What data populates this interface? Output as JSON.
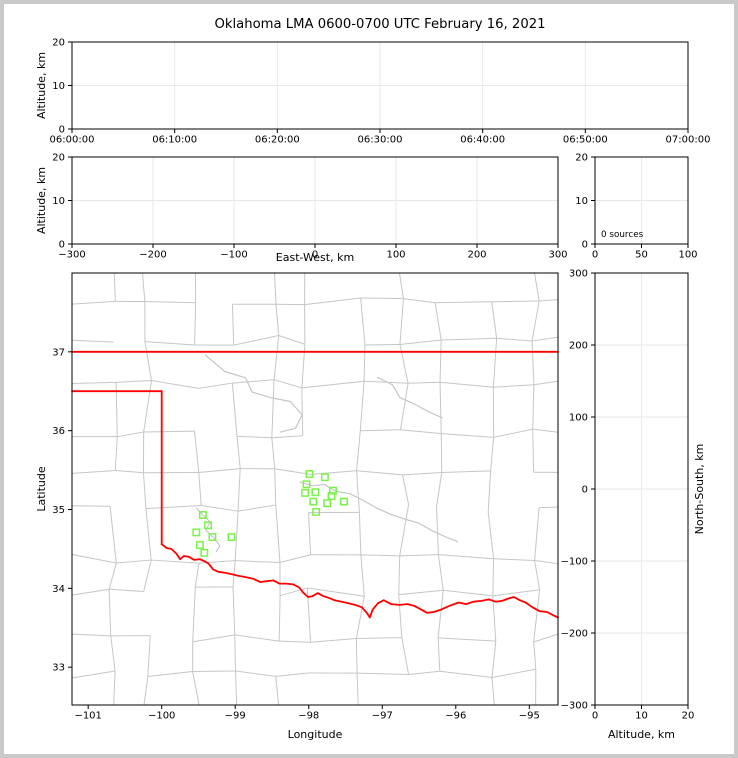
{
  "figure": {
    "title": "Oklahoma LMA 0600-0700 UTC February 16, 2021",
    "background_color": "#ffffff",
    "border_color": "#c9c9c9"
  },
  "colors": {
    "axis": "#000000",
    "grid": "#e7e7e7",
    "county_border": "#c6c6c6",
    "state_border": "#ff0000",
    "station_marker": "#7bf24a"
  },
  "chart_data": [
    {
      "id": "time-height",
      "type": "scatter",
      "xlabel": "",
      "ylabel": "Altitude, km",
      "xlim": [
        0,
        6
      ],
      "xticks": [
        0,
        1,
        2,
        3,
        4,
        5,
        6
      ],
      "xtick_labels": [
        "06:00:00",
        "06:10:00",
        "06:20:00",
        "06:30:00",
        "06:40:00",
        "06:50:00",
        "07:00:00"
      ],
      "ylim": [
        0,
        20
      ],
      "yticks": [
        0,
        10,
        20
      ],
      "ytick_labels": [
        "0",
        "10",
        "20"
      ],
      "grid": true,
      "points": []
    },
    {
      "id": "ew-height",
      "type": "scatter",
      "xlabel": "East-West, km",
      "ylabel": "Altitude, km",
      "xlim": [
        -300,
        300
      ],
      "xticks": [
        -300,
        -200,
        -100,
        0,
        100,
        200,
        300
      ],
      "xtick_labels": [
        "−300",
        "−200",
        "−100",
        "0",
        "100",
        "200",
        "300"
      ],
      "ylim": [
        0,
        20
      ],
      "yticks": [
        0,
        10,
        20
      ],
      "ytick_labels": [
        "0",
        "10",
        "20"
      ],
      "grid": true,
      "points": []
    },
    {
      "id": "alt-histogram",
      "type": "histogram",
      "annotation": "0 sources",
      "xlabel": "",
      "ylabel": "",
      "xlim": [
        0,
        100
      ],
      "xticks": [
        0,
        50,
        100
      ],
      "xtick_labels": [
        "0",
        "50",
        "100"
      ],
      "ylim": [
        0,
        20
      ],
      "yticks": [
        0,
        10,
        20
      ],
      "ytick_labels": [
        "0",
        "10",
        "20"
      ],
      "grid": true,
      "points": []
    },
    {
      "id": "plan-view",
      "type": "map-scatter",
      "xlabel": "Longitude",
      "ylabel": "Latitude",
      "xlim": [
        -101.22,
        -94.61
      ],
      "xticks": [
        -101,
        -100,
        -99,
        -98,
        -97,
        -96,
        -95
      ],
      "xtick_labels": [
        "−101",
        "−100",
        "−99",
        "−98",
        "−97",
        "−96",
        "−95"
      ],
      "ylim": [
        32.52,
        38.0
      ],
      "yticks": [
        33,
        34,
        35,
        36,
        37
      ],
      "ytick_labels": [
        "33",
        "34",
        "35",
        "36",
        "37"
      ],
      "grid": false,
      "stations": [
        [
          -97.99,
          35.45
        ],
        [
          -97.78,
          35.41
        ],
        [
          -98.03,
          35.32
        ],
        [
          -97.67,
          35.24
        ],
        [
          -97.91,
          35.22
        ],
        [
          -98.05,
          35.21
        ],
        [
          -97.69,
          35.17
        ],
        [
          -97.94,
          35.1
        ],
        [
          -97.75,
          35.08
        ],
        [
          -97.52,
          35.1
        ],
        [
          -97.9,
          34.97
        ],
        [
          -99.44,
          34.93
        ],
        [
          -99.37,
          34.8
        ],
        [
          -99.53,
          34.71
        ],
        [
          -99.31,
          34.65
        ],
        [
          -99.05,
          34.65
        ],
        [
          -99.48,
          34.55
        ],
        [
          -99.42,
          34.45
        ]
      ]
    },
    {
      "id": "ns-height",
      "type": "scatter",
      "xlabel": "Altitude, km",
      "ylabel": "North-South, km",
      "xlim": [
        0,
        20
      ],
      "xticks": [
        0,
        10,
        20
      ],
      "xtick_labels": [
        "0",
        "10",
        "20"
      ],
      "ylim": [
        -300,
        300
      ],
      "yticks": [
        -300,
        -200,
        -100,
        0,
        100,
        200,
        300
      ],
      "ytick_labels": [
        "−300",
        "−200",
        "−100",
        "0",
        "100",
        "200",
        "300"
      ],
      "grid": true,
      "points": []
    }
  ],
  "map_features": {
    "state_borders": [
      {
        "name": "kansas-oklahoma-37N",
        "points": [
          [
            -101.22,
            37.0
          ],
          [
            -94.61,
            37.0
          ]
        ]
      },
      {
        "name": "panhandle-36-5N",
        "points": [
          [
            -101.22,
            36.5
          ],
          [
            -100.0,
            36.5
          ]
        ]
      },
      {
        "name": "texas-oklahoma-100W",
        "points": [
          [
            -100.0,
            36.5
          ],
          [
            -100.0,
            34.56
          ]
        ]
      },
      {
        "name": "red-river",
        "points": [
          [
            -100.0,
            34.56
          ],
          [
            -99.93,
            34.51
          ],
          [
            -99.87,
            34.5
          ],
          [
            -99.8,
            34.44
          ],
          [
            -99.75,
            34.37
          ],
          [
            -99.7,
            34.41
          ],
          [
            -99.63,
            34.4
          ],
          [
            -99.56,
            34.36
          ],
          [
            -99.48,
            34.37
          ],
          [
            -99.41,
            34.34
          ],
          [
            -99.36,
            34.31
          ],
          [
            -99.3,
            34.24
          ],
          [
            -99.23,
            34.21
          ],
          [
            -99.15,
            34.2
          ],
          [
            -99.05,
            34.18
          ],
          [
            -98.96,
            34.16
          ],
          [
            -98.85,
            34.14
          ],
          [
            -98.75,
            34.12
          ],
          [
            -98.66,
            34.08
          ],
          [
            -98.57,
            34.09
          ],
          [
            -98.48,
            34.1
          ],
          [
            -98.4,
            34.06
          ],
          [
            -98.31,
            34.06
          ],
          [
            -98.21,
            34.05
          ],
          [
            -98.13,
            34.01
          ],
          [
            -98.08,
            33.95
          ],
          [
            -98.01,
            33.89
          ],
          [
            -97.95,
            33.9
          ],
          [
            -97.88,
            33.94
          ],
          [
            -97.8,
            33.9
          ],
          [
            -97.73,
            33.88
          ],
          [
            -97.65,
            33.85
          ],
          [
            -97.55,
            33.83
          ],
          [
            -97.46,
            33.81
          ],
          [
            -97.37,
            33.79
          ],
          [
            -97.28,
            33.76
          ],
          [
            -97.21,
            33.69
          ],
          [
            -97.17,
            33.63
          ],
          [
            -97.13,
            33.73
          ],
          [
            -97.06,
            33.81
          ],
          [
            -96.98,
            33.85
          ],
          [
            -96.88,
            33.8
          ],
          [
            -96.77,
            33.79
          ],
          [
            -96.66,
            33.8
          ],
          [
            -96.57,
            33.78
          ],
          [
            -96.47,
            33.73
          ],
          [
            -96.39,
            33.69
          ],
          [
            -96.3,
            33.7
          ],
          [
            -96.2,
            33.73
          ],
          [
            -96.08,
            33.78
          ],
          [
            -95.96,
            33.82
          ],
          [
            -95.86,
            33.8
          ],
          [
            -95.76,
            33.83
          ],
          [
            -95.65,
            33.84
          ],
          [
            -95.55,
            33.86
          ],
          [
            -95.46,
            33.83
          ],
          [
            -95.37,
            33.84
          ],
          [
            -95.29,
            33.87
          ],
          [
            -95.21,
            33.89
          ],
          [
            -95.13,
            33.85
          ],
          [
            -95.05,
            33.82
          ],
          [
            -94.96,
            33.76
          ],
          [
            -94.86,
            33.71
          ],
          [
            -94.76,
            33.7
          ],
          [
            -94.68,
            33.66
          ],
          [
            -94.61,
            33.63
          ]
        ]
      }
    ],
    "rivers": [
      {
        "name": "cimarron",
        "points": [
          [
            -99.41,
            36.96
          ],
          [
            -99.14,
            36.75
          ],
          [
            -98.86,
            36.67
          ],
          [
            -98.77,
            36.49
          ],
          [
            -98.52,
            36.42
          ],
          [
            -98.25,
            36.37
          ],
          [
            -98.09,
            36.2
          ],
          [
            -98.18,
            36.03
          ],
          [
            -98.39,
            35.98
          ]
        ]
      },
      {
        "name": "canadian",
        "points": [
          [
            -98.12,
            35.35
          ],
          [
            -97.95,
            35.3
          ],
          [
            -97.79,
            35.32
          ],
          [
            -97.63,
            35.23
          ],
          [
            -97.44,
            35.2
          ],
          [
            -97.27,
            35.12
          ],
          [
            -97.08,
            35.02
          ],
          [
            -96.89,
            34.94
          ],
          [
            -96.7,
            34.88
          ],
          [
            -96.51,
            34.83
          ],
          [
            -96.32,
            34.73
          ],
          [
            -96.13,
            34.65
          ],
          [
            -95.97,
            34.59
          ]
        ]
      },
      {
        "name": "north-fork",
        "points": [
          [
            -99.53,
            35.02
          ],
          [
            -99.44,
            34.93
          ],
          [
            -99.34,
            34.84
          ],
          [
            -99.4,
            34.74
          ],
          [
            -99.29,
            34.64
          ],
          [
            -99.21,
            34.54
          ],
          [
            -99.26,
            34.46
          ]
        ]
      },
      {
        "name": "arkansas-ne",
        "points": [
          [
            -97.07,
            36.68
          ],
          [
            -96.86,
            36.58
          ],
          [
            -96.76,
            36.42
          ],
          [
            -96.55,
            36.33
          ],
          [
            -96.37,
            36.24
          ],
          [
            -96.18,
            36.16
          ]
        ]
      }
    ]
  }
}
